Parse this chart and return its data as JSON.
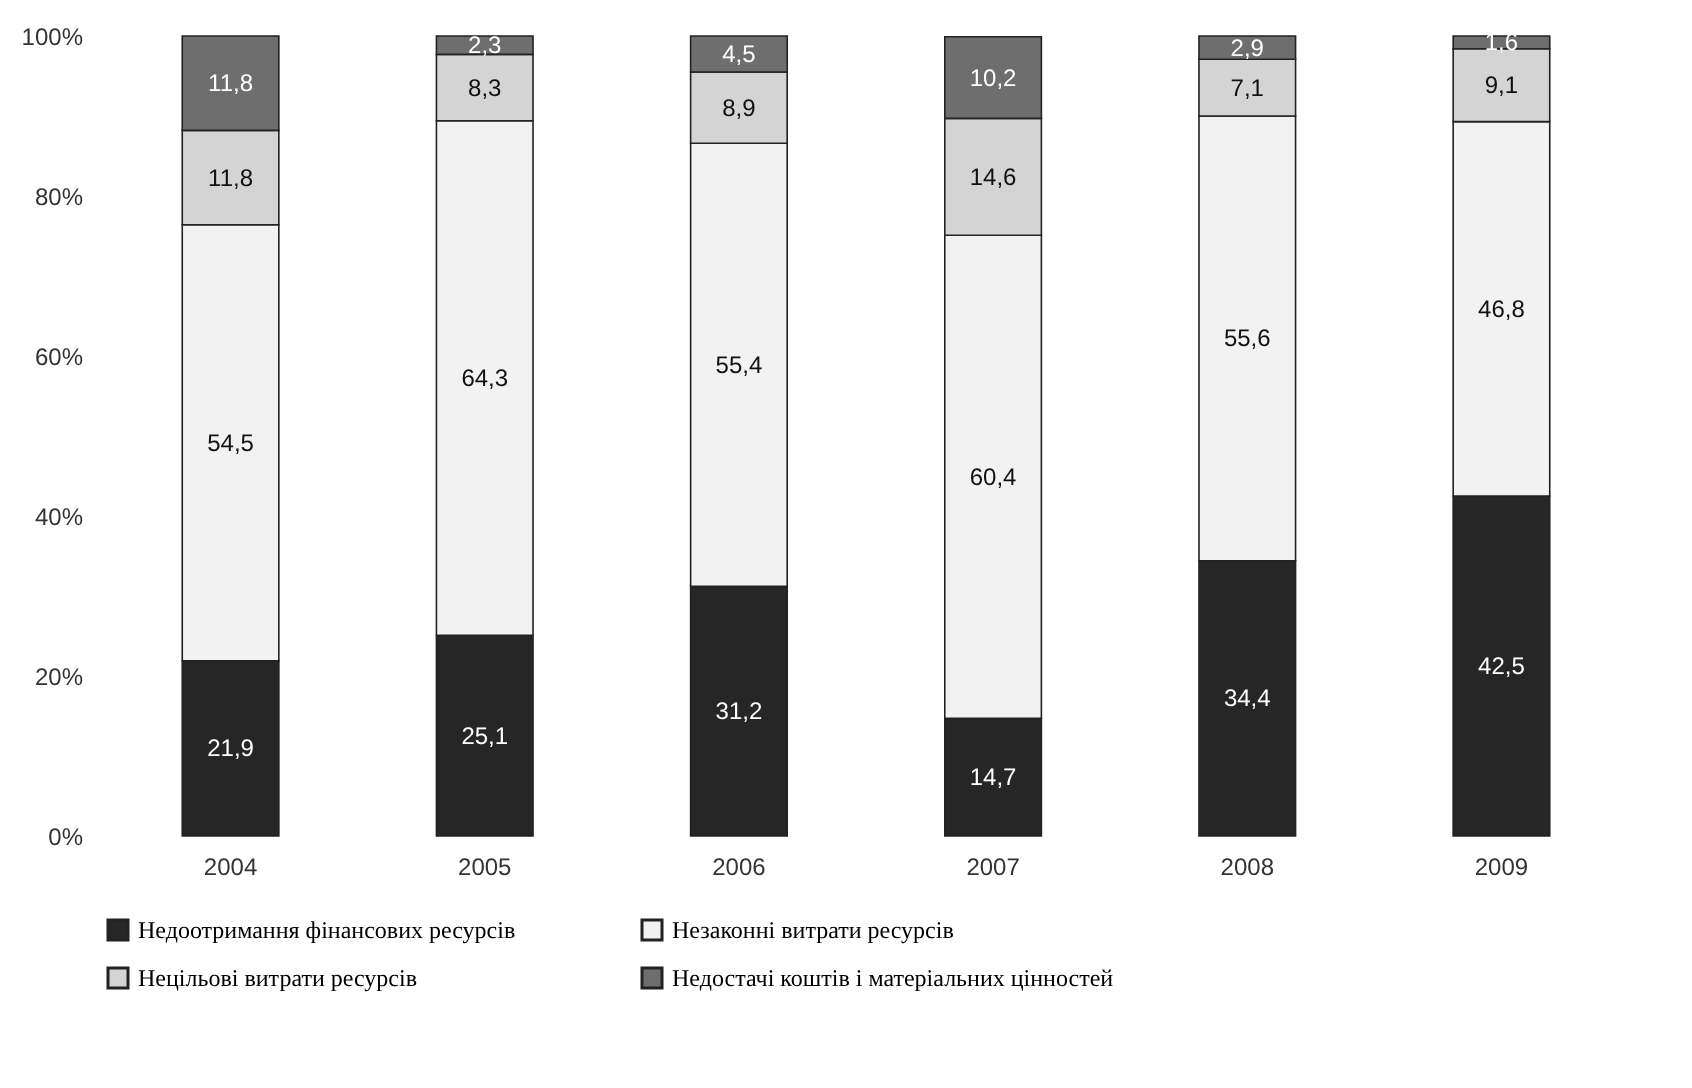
{
  "chart_data": {
    "type": "bar",
    "stacked": true,
    "categories": [
      "2004",
      "2005",
      "2006",
      "2007",
      "2008",
      "2009"
    ],
    "series": [
      {
        "name": "Недоотримання фінансових ресурсів",
        "color": "#262626",
        "values": [
          21.9,
          25.1,
          31.2,
          14.7,
          34.4,
          42.5
        ],
        "value_labels": [
          "21,9",
          "25,1",
          "31,2",
          "14,7",
          "34,4",
          "42,5"
        ]
      },
      {
        "name": "Незаконні витрати ресурсів",
        "color": "#f2f2f2",
        "values": [
          54.5,
          64.3,
          55.4,
          60.4,
          55.6,
          46.8
        ],
        "value_labels": [
          "54,5",
          "64,3",
          "55,4",
          "60,4",
          "55,6",
          "46,8"
        ]
      },
      {
        "name": "Нецільові витрати ресурсів",
        "color": "#d4d4d4",
        "values": [
          11.8,
          8.3,
          8.9,
          14.6,
          7.1,
          9.1
        ],
        "value_labels": [
          "11,8",
          "8,3",
          "8,9",
          "14,6",
          "7,1",
          "9,1"
        ]
      },
      {
        "name": "Недостачі коштів і матеріальних цінностей",
        "color": "#6e6e6e",
        "values": [
          11.8,
          2.3,
          4.5,
          10.2,
          2.9,
          1.6
        ],
        "value_labels": [
          "11,8",
          "2,3",
          "4,5",
          "10,2",
          "2,9",
          "1,6"
        ]
      }
    ],
    "ylim": [
      0,
      100
    ],
    "yticks": [
      {
        "value": 0,
        "label": "0%"
      },
      {
        "value": 20,
        "label": "20%"
      },
      {
        "value": 40,
        "label": "40%"
      },
      {
        "value": 60,
        "label": "60%"
      },
      {
        "value": 80,
        "label": "80%"
      },
      {
        "value": 100,
        "label": "100%"
      }
    ],
    "grid": false,
    "legend": "bottom"
  }
}
